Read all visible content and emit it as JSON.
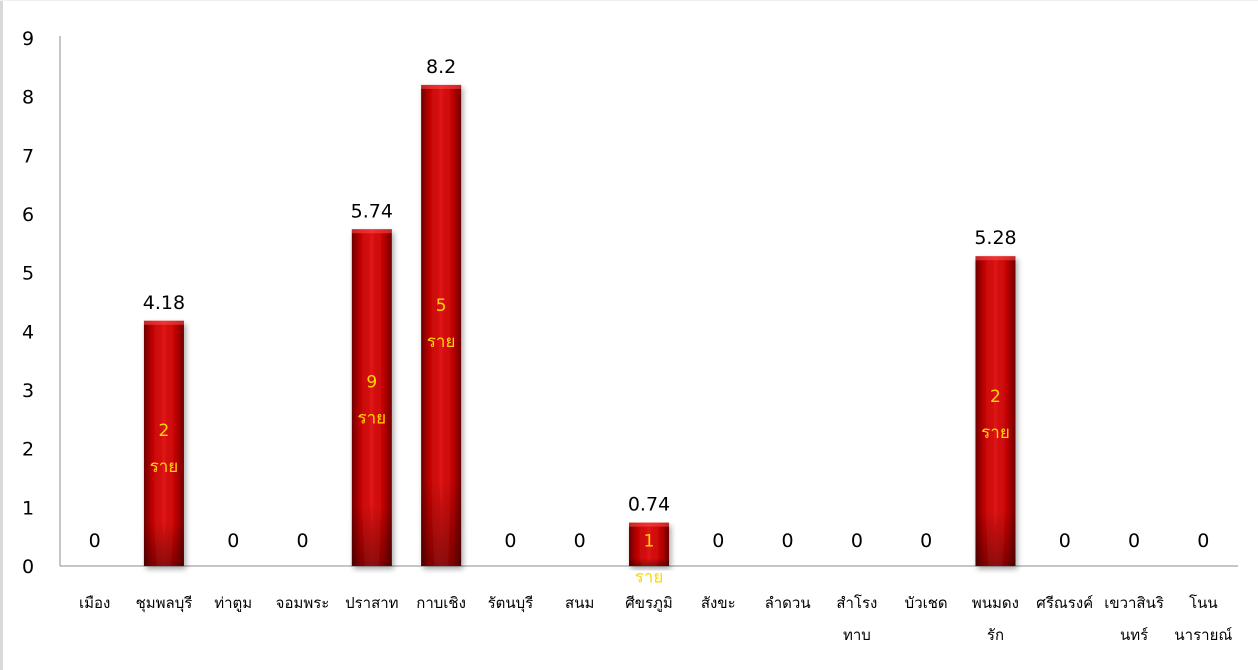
{
  "chart_data": {
    "type": "bar",
    "title": "",
    "xlabel": "",
    "ylabel": "",
    "ylim": [
      0,
      9
    ],
    "yticks": [
      0,
      1,
      2,
      3,
      4,
      5,
      6,
      7,
      8,
      9
    ],
    "grid": false,
    "legend": "none",
    "bar_color": "#c00000",
    "inner_label_color": "#ffd700",
    "categories": [
      [
        "เมือง"
      ],
      [
        "ชุมพลบุรี"
      ],
      [
        "ท่าตูม"
      ],
      [
        "จอมพระ"
      ],
      [
        "ปราสาท"
      ],
      [
        "กาบเชิง"
      ],
      [
        "รัตนบุรี"
      ],
      [
        "สนม"
      ],
      [
        "ศีขรภูมิ"
      ],
      [
        "สังขะ"
      ],
      [
        "ลำดวน"
      ],
      [
        "สำโรง",
        "ทาบ"
      ],
      [
        "บัวเชด"
      ],
      [
        "พนมดง",
        "รัก"
      ],
      [
        "ศรีณรงค์"
      ],
      [
        "เขวาสินริ",
        "นทร์"
      ],
      [
        "โนน",
        "นารายณ์"
      ]
    ],
    "values": [
      0,
      4.18,
      0,
      0,
      5.74,
      8.2,
      0,
      0,
      0.74,
      0,
      0,
      0,
      0,
      5.28,
      0,
      0,
      0
    ],
    "value_labels": [
      "0",
      "4.18",
      "0",
      "0",
      "5.74",
      "8.2",
      "0",
      "0",
      "0.74",
      "0",
      "0",
      "0",
      "0",
      "5.28",
      "0",
      "0",
      "0"
    ],
    "inner_labels": [
      null,
      [
        "2",
        "ราย"
      ],
      null,
      null,
      [
        "9",
        "ราย"
      ],
      [
        "5",
        "ราย"
      ],
      null,
      null,
      [
        "1",
        "ราย"
      ],
      null,
      null,
      null,
      null,
      [
        "2",
        "ราย"
      ],
      null,
      null,
      null
    ]
  }
}
